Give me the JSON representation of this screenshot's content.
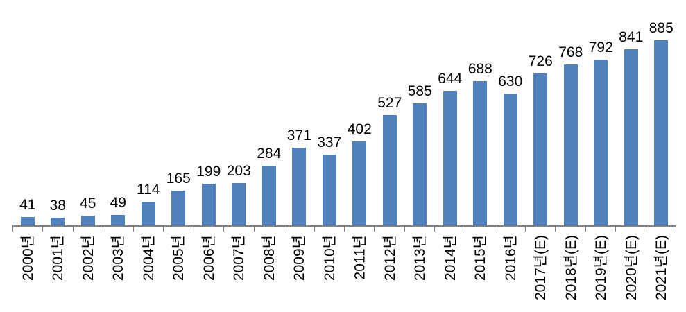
{
  "chart_data": {
    "type": "bar",
    "title": "",
    "xlabel": "",
    "ylabel": "",
    "categories": [
      "2000년",
      "2001년",
      "2002년",
      "2003년",
      "2004년",
      "2005년",
      "2006년",
      "2007년",
      "2008년",
      "2009년",
      "2010년",
      "2011년",
      "2012년",
      "2013년",
      "2014년",
      "2015년",
      "2016년",
      "2017년(E)",
      "2018년(E)",
      "2019년(E)",
      "2020년(E)",
      "2021년(E)"
    ],
    "values": [
      41,
      38,
      45,
      49,
      114,
      165,
      199,
      203,
      284,
      371,
      337,
      402,
      527,
      585,
      644,
      688,
      630,
      726,
      768,
      792,
      841,
      885
    ],
    "ylim": [
      0,
      900
    ],
    "grid": false,
    "legend": false,
    "data_labels": true,
    "x_tick_rotation_deg": 90,
    "colors": {
      "bar": "#4F81BD",
      "axis": "#808080",
      "text": "#000000",
      "background": "#FFFFFF"
    }
  }
}
